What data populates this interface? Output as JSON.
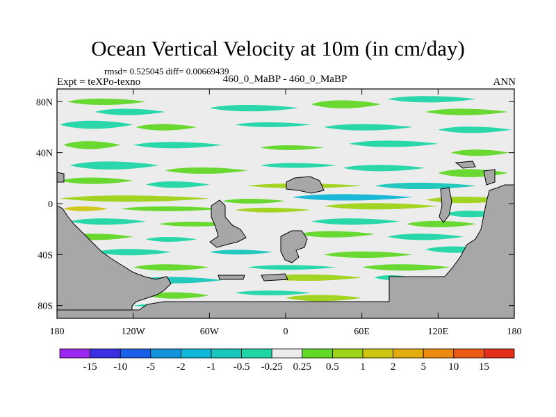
{
  "header": {
    "title": "Ocean Vertical Velocity at 10m (in cm/day)",
    "stats": "rmsd= 0.525045 diff= 0.00669439",
    "experiment": "Expt = teXPo-texno",
    "comparison": "460_0_MaBP - 460_0_MaBP",
    "season": "ANN"
  },
  "chart_data": {
    "type": "heatmap",
    "title": "Ocean Vertical Velocity at 10m (in cm/day)",
    "xlabel": "",
    "ylabel": "",
    "x_ticks": [
      "180",
      "120W",
      "60W",
      "0",
      "60E",
      "120E",
      "180"
    ],
    "y_ticks": [
      "80N",
      "40N",
      "0",
      "40S",
      "80S"
    ],
    "xlim": [
      -180,
      180
    ],
    "ylim": [
      -90,
      90
    ],
    "colorbar": {
      "levels": [
        "-15",
        "-10",
        "-5",
        "-2",
        "-1",
        "-0.5",
        "-0.25",
        "0.25",
        "0.5",
        "1",
        "2",
        "5",
        "10",
        "15"
      ],
      "colors": [
        "#9a28ee",
        "#3c2fe2",
        "#1a5fe8",
        "#1493dc",
        "#10b6d6",
        "#18c6bc",
        "#1fd6a6",
        "#ececec",
        "#62d828",
        "#9fd318",
        "#cfc612",
        "#e3ad10",
        "#ec8a10",
        "#ec5a16",
        "#e4301a"
      ]
    },
    "land_color": "#a7a7a7",
    "background_color": "#ececec"
  }
}
